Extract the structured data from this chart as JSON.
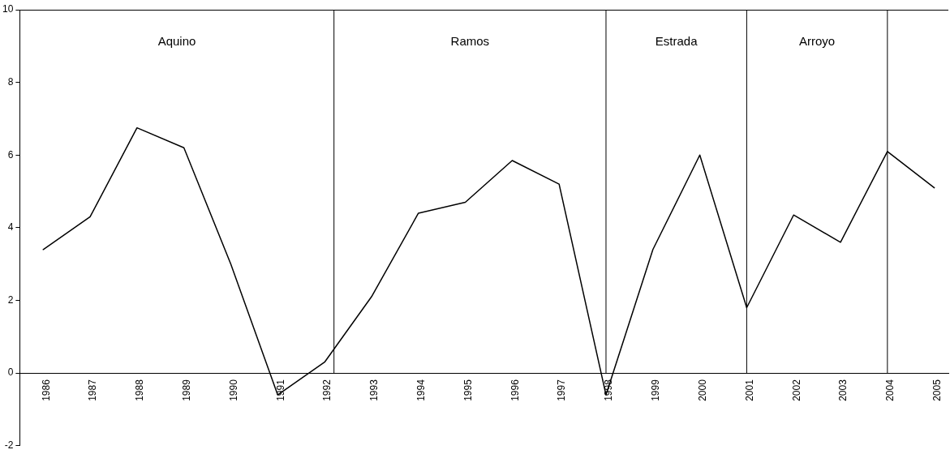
{
  "chart_data": {
    "type": "line",
    "x": [
      1986,
      1987,
      1988,
      1989,
      1990,
      1991,
      1992,
      1993,
      1994,
      1995,
      1996,
      1997,
      1998,
      1999,
      2000,
      2001,
      2002,
      2003,
      2004,
      2005
    ],
    "series": [
      {
        "color": "#000000",
        "values": [
          3.4,
          4.3,
          6.75,
          6.2,
          3.0,
          -0.6,
          0.3,
          2.1,
          4.4,
          4.7,
          5.85,
          5.2,
          -0.6,
          3.4,
          6.0,
          1.8,
          4.35,
          3.6,
          6.1,
          5.1
        ]
      }
    ],
    "xlim": [
      1985.5,
      2005.3
    ],
    "xticks": [
      1986,
      1987,
      1988,
      1989,
      1990,
      1991,
      1992,
      1993,
      1994,
      1995,
      1996,
      1997,
      1998,
      1999,
      2000,
      2001,
      2002,
      2003,
      2004,
      2005
    ],
    "ylim": [
      -2,
      10
    ],
    "yticks": [
      -2,
      0,
      2,
      4,
      6,
      8,
      10
    ],
    "grid": false,
    "legend": false,
    "marker": "none",
    "line_style": "solid",
    "ref_lines": [
      {
        "axis": "x",
        "value": 1992.2,
        "color": "#000000"
      },
      {
        "axis": "x",
        "value": 1998,
        "color": "#000000"
      },
      {
        "axis": "x",
        "value": 2001,
        "color": "#000000"
      },
      {
        "axis": "x",
        "value": 2004,
        "color": "#000000"
      }
    ],
    "annotations": [
      "Aquino",
      "Ramos",
      "Estrada",
      "Arroyo"
    ]
  }
}
